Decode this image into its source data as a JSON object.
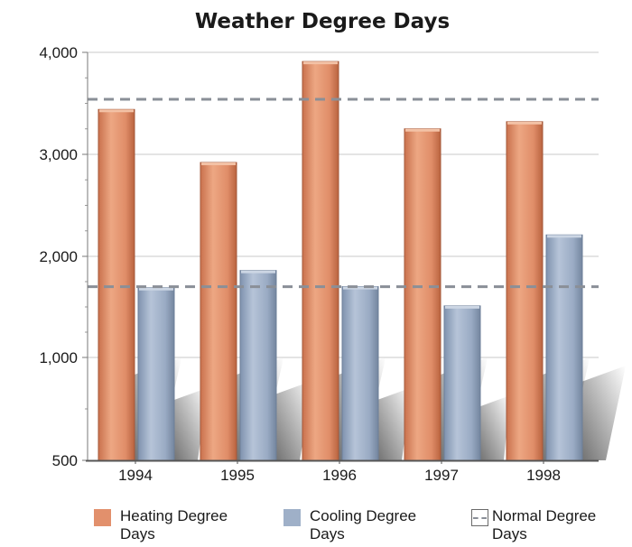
{
  "chart_data": {
    "type": "bar",
    "title": "Weather Degree Days",
    "categories": [
      "1994",
      "1995",
      "1996",
      "1997",
      "1998"
    ],
    "series": [
      {
        "name": "Heating Degree Days",
        "values": [
          3440,
          2920,
          3910,
          3250,
          3320
        ],
        "color": "#e2906c"
      },
      {
        "name": "Cooling Degree Days",
        "values": [
          1690,
          1860,
          1700,
          1510,
          2210
        ],
        "color": "#9fb0c8"
      }
    ],
    "reference_lines": {
      "name": "Normal Degree Days",
      "values": [
        3540,
        1700
      ],
      "color": "#8a8f97"
    },
    "y_ticks": [
      500,
      1000,
      2000,
      3000,
      4000
    ],
    "y_tick_labels": [
      "500",
      "1,000",
      "2,000",
      "3,000",
      "4,000"
    ],
    "ylim": [
      500,
      4000
    ],
    "y_scale": "broken-linear",
    "grid": true,
    "legend_position": "bottom"
  }
}
